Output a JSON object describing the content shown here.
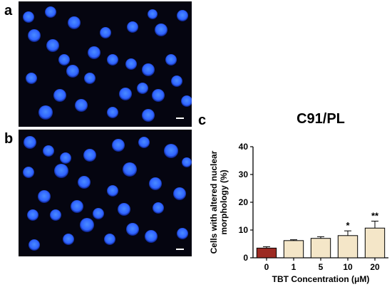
{
  "panels": {
    "a": "a",
    "b": "b",
    "c": "c"
  },
  "chart_data": {
    "type": "bar",
    "title": "C91/PL",
    "xlabel": "TBT Concentration (μM)",
    "ylabel": "Cells with altered nuclear morphology (%)",
    "ylabel_lines": [
      "Cells with altered nuclear",
      "morphology (%)"
    ],
    "categories": [
      "0",
      "1",
      "5",
      "10",
      "20"
    ],
    "values": [
      3.5,
      6.2,
      7.0,
      8.0,
      10.7
    ],
    "errors": [
      0.5,
      0.3,
      0.6,
      1.7,
      2.5
    ],
    "significance": [
      "",
      "",
      "",
      "*",
      "**"
    ],
    "bar_colors": [
      "#9c2a22",
      "#f4e6c8",
      "#f4e6c8",
      "#f4e6c8",
      "#f4e6c8"
    ],
    "ylim": [
      0,
      40
    ],
    "yticks": [
      0,
      10,
      20,
      30,
      40
    ],
    "grid": false
  },
  "micrograph_colors": {
    "background": "#050510",
    "nucleus": "#2f63ff",
    "nucleus_bright": "#4a8cff"
  }
}
